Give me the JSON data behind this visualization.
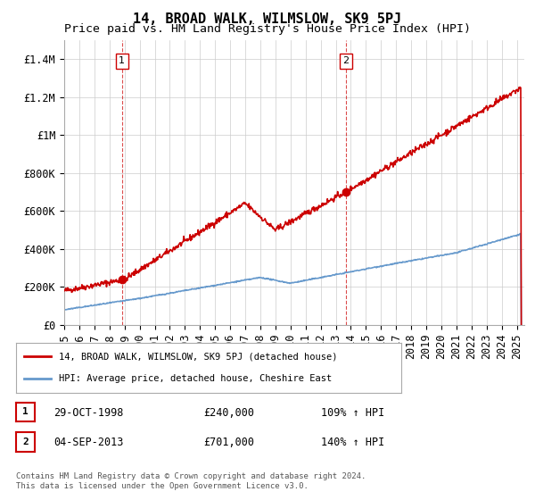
{
  "title": "14, BROAD WALK, WILMSLOW, SK9 5PJ",
  "subtitle": "Price paid vs. HM Land Registry's House Price Index (HPI)",
  "ylabel_ticks": [
    "£0",
    "£200K",
    "£400K",
    "£600K",
    "£800K",
    "£1M",
    "£1.2M",
    "£1.4M"
  ],
  "ytick_values": [
    0,
    200000,
    400000,
    600000,
    800000,
    1000000,
    1200000,
    1400000
  ],
  "ylim": [
    0,
    1500000
  ],
  "xlim_start": 1995.0,
  "xlim_end": 2025.5,
  "sale1_date": 1998.83,
  "sale1_price": 240000,
  "sale2_date": 2013.67,
  "sale2_price": 701000,
  "hpi_color": "#6699cc",
  "price_color": "#cc0000",
  "vline_color": "#cc0000",
  "marker_color": "#cc0000",
  "grid_color": "#cccccc",
  "legend_label_price": "14, BROAD WALK, WILMSLOW, SK9 5PJ (detached house)",
  "legend_label_hpi": "HPI: Average price, detached house, Cheshire East",
  "annotation1_text": "29-OCT-1998",
  "annotation1_price": "£240,000",
  "annotation1_hpi": "109% ↑ HPI",
  "annotation2_text": "04-SEP-2013",
  "annotation2_price": "£701,000",
  "annotation2_hpi": "140% ↑ HPI",
  "footer": "Contains HM Land Registry data © Crown copyright and database right 2024.\nThis data is licensed under the Open Government Licence v3.0.",
  "title_fontsize": 11,
  "subtitle_fontsize": 9.5,
  "tick_fontsize": 8.5,
  "background_color": "#ffffff"
}
